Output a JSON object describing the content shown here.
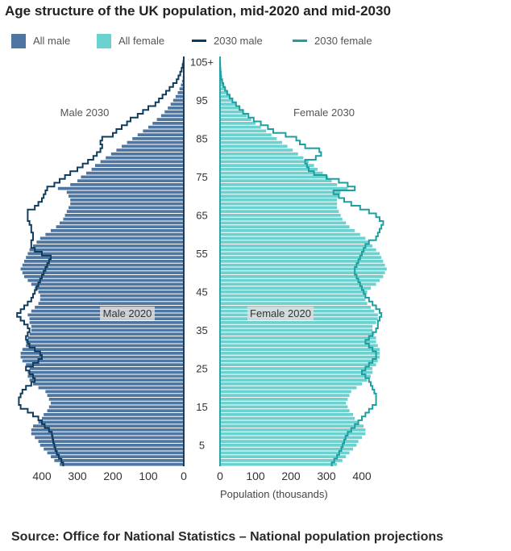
{
  "chart_data": {
    "type": "bar",
    "title": "Age structure of the UK population, mid-2020 and mid-2030",
    "xlabel": "Population (thousands)",
    "x_ticks_left": [
      "400",
      "300",
      "200",
      "100",
      "0"
    ],
    "x_tick_values_left": [
      400,
      300,
      200,
      100,
      0
    ],
    "x_ticks_right": [
      "0",
      "100",
      "200",
      "300",
      "400"
    ],
    "x_tick_values_right": [
      0,
      100,
      200,
      300,
      400
    ],
    "xlim": [
      0,
      500
    ],
    "age_tick_labels": [
      "5",
      "15",
      "25",
      "35",
      "45",
      "55",
      "65",
      "75",
      "85",
      "95",
      "105+"
    ],
    "age_tick_values": [
      5,
      15,
      25,
      35,
      45,
      55,
      65,
      75,
      85,
      95,
      105
    ],
    "ages": [
      0,
      1,
      2,
      3,
      4,
      5,
      6,
      7,
      8,
      9,
      10,
      11,
      12,
      13,
      14,
      15,
      16,
      17,
      18,
      19,
      20,
      21,
      22,
      23,
      24,
      25,
      26,
      27,
      28,
      29,
      30,
      31,
      32,
      33,
      34,
      35,
      36,
      37,
      38,
      39,
      40,
      41,
      42,
      43,
      44,
      45,
      46,
      47,
      48,
      49,
      50,
      51,
      52,
      53,
      54,
      55,
      56,
      57,
      58,
      59,
      60,
      61,
      62,
      63,
      64,
      65,
      66,
      67,
      68,
      69,
      70,
      71,
      72,
      73,
      74,
      75,
      76,
      77,
      78,
      79,
      80,
      81,
      82,
      83,
      84,
      85,
      86,
      87,
      88,
      89,
      90,
      91,
      92,
      93,
      94,
      95,
      96,
      97,
      98,
      99,
      100,
      101,
      102,
      103,
      104,
      105
    ],
    "legend": [
      {
        "label": "All male",
        "kind": "bar",
        "color": "#4f76a0"
      },
      {
        "label": "All female",
        "kind": "bar",
        "color": "#6bd2d0"
      },
      {
        "label": "2030 male",
        "kind": "line",
        "color": "#0f3c5c"
      },
      {
        "label": "2030 female",
        "kind": "line",
        "color": "#1e9f9f"
      }
    ],
    "annotations": {
      "male_2030": "Male 2030",
      "female_2030": "Female 2030",
      "male_2020": "Male 2020",
      "female_2020": "Female 2020"
    },
    "series": [
      {
        "name": "All male",
        "side": "left",
        "color": "#4f76a0",
        "values": [
          350,
          365,
          375,
          385,
          395,
          405,
          410,
          420,
          430,
          430,
          425,
          410,
          400,
          395,
          385,
          380,
          375,
          380,
          385,
          390,
          410,
          425,
          435,
          440,
          440,
          435,
          445,
          455,
          460,
          460,
          455,
          445,
          445,
          440,
          435,
          430,
          430,
          435,
          435,
          440,
          430,
          420,
          410,
          405,
          405,
          410,
          420,
          430,
          440,
          450,
          455,
          460,
          455,
          450,
          445,
          440,
          435,
          425,
          415,
          405,
          390,
          375,
          360,
          350,
          340,
          335,
          330,
          325,
          320,
          320,
          325,
          330,
          355,
          320,
          300,
          290,
          275,
          260,
          250,
          235,
          220,
          205,
          190,
          175,
          160,
          145,
          130,
          115,
          100,
          88,
          76,
          64,
          54,
          45,
          37,
          30,
          23,
          17,
          12,
          8,
          5,
          3,
          2,
          1,
          1,
          0.5
        ]
      },
      {
        "name": "All female",
        "side": "right",
        "color": "#6bd2d0",
        "values": [
          330,
          345,
          355,
          365,
          375,
          385,
          390,
          400,
          410,
          410,
          405,
          390,
          380,
          375,
          365,
          360,
          355,
          360,
          365,
          370,
          385,
          400,
          415,
          425,
          430,
          430,
          440,
          445,
          450,
          450,
          450,
          445,
          440,
          440,
          435,
          430,
          430,
          440,
          445,
          445,
          435,
          425,
          415,
          410,
          410,
          415,
          425,
          440,
          450,
          460,
          465,
          470,
          465,
          460,
          455,
          450,
          440,
          430,
          420,
          410,
          395,
          380,
          365,
          355,
          345,
          340,
          335,
          330,
          330,
          330,
          335,
          340,
          360,
          330,
          315,
          305,
          290,
          275,
          265,
          250,
          235,
          220,
          205,
          190,
          175,
          160,
          145,
          130,
          115,
          100,
          88,
          76,
          64,
          54,
          45,
          37,
          30,
          23,
          17,
          12,
          8,
          5,
          3,
          2,
          1,
          0.5
        ]
      },
      {
        "name": "2030 male",
        "side": "left",
        "color": "#0f3c5c",
        "values": [
          340,
          345,
          352,
          358,
          362,
          365,
          368,
          370,
          372,
          380,
          392,
          400,
          410,
          425,
          440,
          460,
          465,
          465,
          460,
          455,
          445,
          430,
          420,
          425,
          435,
          445,
          425,
          410,
          400,
          405,
          420,
          435,
          440,
          445,
          440,
          435,
          440,
          450,
          460,
          470,
          460,
          450,
          440,
          430,
          425,
          420,
          415,
          410,
          405,
          400,
          395,
          390,
          385,
          380,
          375,
          400,
          420,
          430,
          430,
          425,
          425,
          430,
          430,
          435,
          440,
          440,
          440,
          420,
          410,
          400,
          395,
          390,
          385,
          365,
          350,
          335,
          320,
          300,
          285,
          270,
          255,
          245,
          235,
          230,
          235,
          230,
          200,
          190,
          175,
          160,
          150,
          130,
          115,
          100,
          80,
          70,
          60,
          50,
          40,
          30,
          20,
          15,
          10,
          6,
          3,
          1
        ]
      },
      {
        "name": "2030 female",
        "side": "right",
        "color": "#1e9f9f",
        "values": [
          315,
          322,
          330,
          336,
          342,
          346,
          350,
          354,
          360,
          370,
          380,
          390,
          400,
          410,
          420,
          430,
          440,
          440,
          440,
          435,
          430,
          425,
          420,
          410,
          400,
          410,
          420,
          430,
          440,
          440,
          430,
          420,
          410,
          420,
          430,
          440,
          445,
          445,
          450,
          455,
          450,
          440,
          430,
          420,
          410,
          405,
          400,
          395,
          390,
          385,
          380,
          380,
          385,
          390,
          395,
          400,
          405,
          410,
          420,
          440,
          445,
          450,
          455,
          460,
          450,
          440,
          420,
          395,
          370,
          350,
          335,
          320,
          380,
          360,
          335,
          300,
          265,
          250,
          245,
          240,
          270,
          285,
          280,
          240,
          225,
          215,
          185,
          150,
          135,
          115,
          95,
          80,
          65,
          55,
          45,
          35,
          27,
          20,
          14,
          9,
          6,
          3,
          2,
          1,
          0.5,
          0.2
        ]
      }
    ]
  },
  "footer": {
    "source": "Source: Office for National Statistics – National population projections"
  }
}
